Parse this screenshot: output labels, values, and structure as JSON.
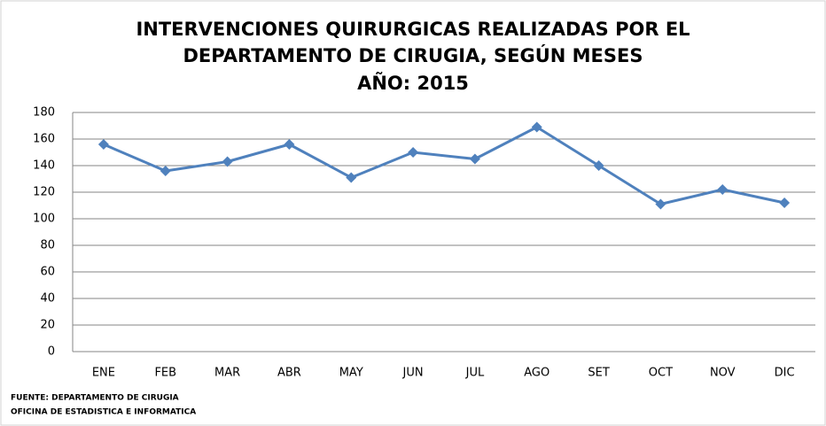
{
  "chart_data": {
    "type": "line",
    "title": [
      "INTERVENCIONES QUIRURGICAS REALIZADAS POR EL",
      "DEPARTAMENTO DE CIRUGIA, SEGÚN MESES",
      "AÑO: 2015"
    ],
    "categories": [
      "ENE",
      "FEB",
      "MAR",
      "ABR",
      "MAY",
      "JUN",
      "JUL",
      "AGO",
      "SET",
      "OCT",
      "NOV",
      "DIC"
    ],
    "series": [
      {
        "color": "#4f81bd",
        "values": [
          156,
          136,
          143,
          156,
          131,
          150,
          145,
          169,
          140,
          111,
          122,
          112
        ]
      }
    ],
    "ylim": [
      0,
      180
    ],
    "yticks": [
      0,
      20,
      40,
      60,
      80,
      100,
      120,
      140,
      160,
      180
    ],
    "grid": true,
    "source": [
      "FUENTE: DEPARTAMENTO DE CIRUGIA",
      "OFICINA DE ESTADISTICA E INFORMATICA"
    ]
  }
}
